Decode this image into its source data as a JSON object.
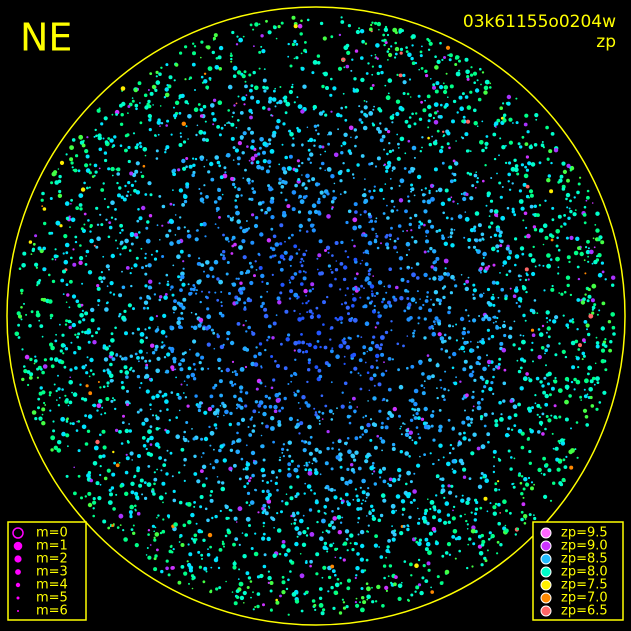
{
  "header": {
    "direction": "NE",
    "frame_id": "03k61155o0204w",
    "mode": "zp"
  },
  "magnitude_legend": {
    "items": [
      "m=0",
      "m=1",
      "m=2",
      "m=3",
      "m=4",
      "m=5",
      "m=6"
    ],
    "color": "#ff00ff"
  },
  "zp_legend": {
    "items": [
      {
        "label": "zp=9.5",
        "color": "#ff66ff"
      },
      {
        "label": "zp=9.0",
        "color": "#cc33ff"
      },
      {
        "label": "zp=8.5",
        "color": "#22bbff"
      },
      {
        "label": "zp=8.0",
        "color": "#00ffcc"
      },
      {
        "label": "zp=7.5",
        "color": "#ffee00"
      },
      {
        "label": "zp=7.0",
        "color": "#ff8800"
      },
      {
        "label": "zp=6.5",
        "color": "#ff6666"
      }
    ]
  }
}
